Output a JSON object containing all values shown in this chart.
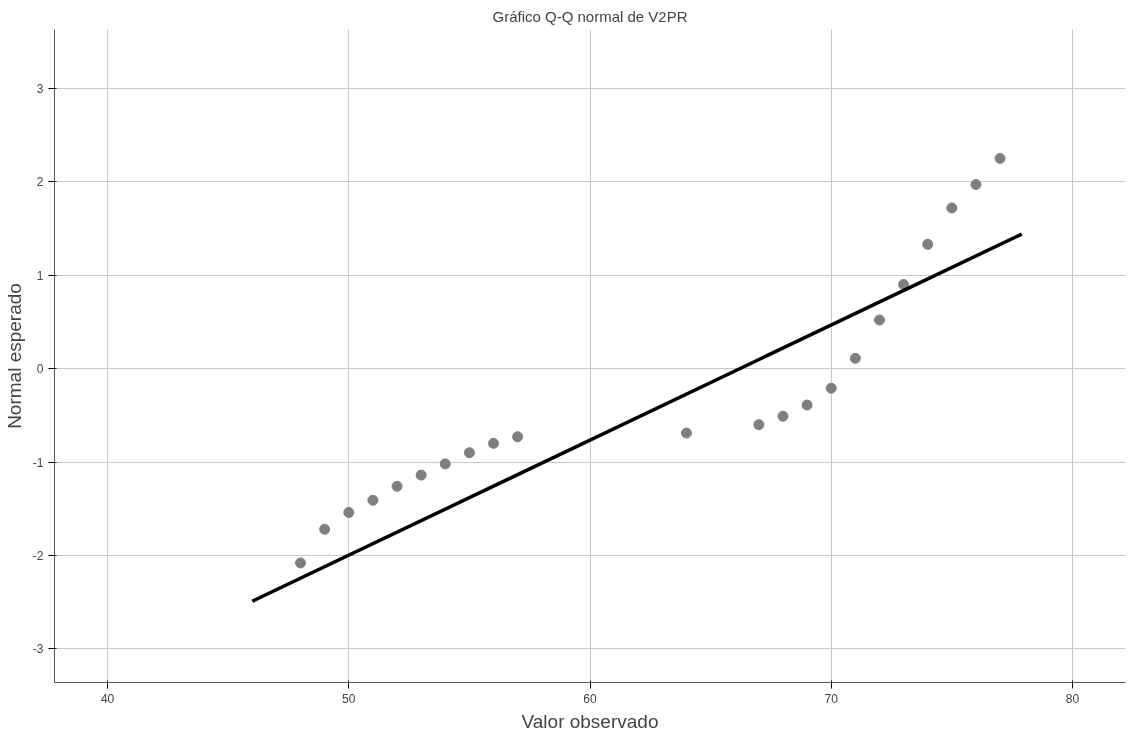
{
  "chart_data": {
    "type": "scatter",
    "title": "Gráfico Q-Q normal de V2PR",
    "xlabel": "Valor observado",
    "ylabel": "Normal esperado",
    "xlim": [
      37.8,
      82.2
    ],
    "ylim": [
      -3.36,
      3.63
    ],
    "xticks": [
      40,
      50,
      60,
      70,
      80
    ],
    "yticks": [
      -3,
      -2,
      -1,
      0,
      1,
      2,
      3
    ],
    "grid": true,
    "series": [
      {
        "marker": "circle",
        "color": "#7f7f7f",
        "x": [
          48,
          49,
          50,
          51,
          52,
          53,
          54,
          55,
          56,
          57,
          64,
          67,
          68,
          69,
          70,
          71,
          72,
          73,
          74,
          75,
          76,
          77
        ],
        "values": [
          -2.08,
          -1.72,
          -1.54,
          -1.41,
          -1.26,
          -1.14,
          -1.02,
          -0.9,
          -0.8,
          -0.73,
          -0.69,
          -0.6,
          -0.51,
          -0.39,
          -0.21,
          0.11,
          0.52,
          0.9,
          1.33,
          1.72,
          1.97,
          2.25
        ]
      },
      {
        "type": "line",
        "color": "#000000",
        "x": [
          46.0,
          77.9
        ],
        "values": [
          -2.49,
          1.44
        ]
      }
    ]
  }
}
